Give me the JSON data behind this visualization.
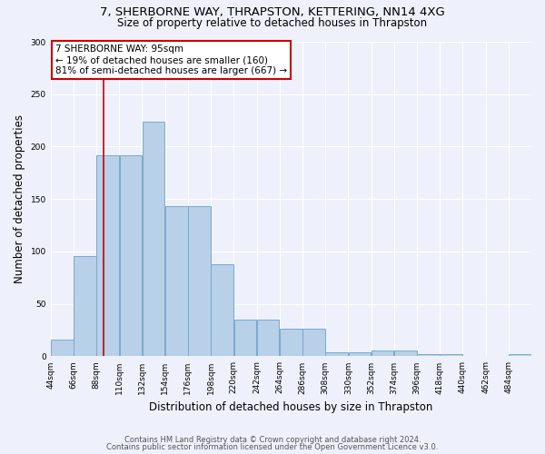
{
  "title1": "7, SHERBORNE WAY, THRAPSTON, KETTERING, NN14 4XG",
  "title2": "Size of property relative to detached houses in Thrapston",
  "xlabel": "Distribution of detached houses by size in Thrapston",
  "ylabel": "Number of detached properties",
  "annotation_line1": "7 SHERBORNE WAY: 95sqm",
  "annotation_line2": "← 19% of detached houses are smaller (160)",
  "annotation_line3": "81% of semi-detached houses are larger (667) →",
  "property_sqm": 95,
  "bin_edges": [
    44,
    66,
    88,
    110,
    132,
    154,
    176,
    198,
    220,
    242,
    264,
    286,
    308,
    330,
    352,
    374,
    396,
    418,
    440,
    462,
    484,
    506
  ],
  "bar_heights": [
    16,
    96,
    192,
    192,
    224,
    143,
    143,
    88,
    35,
    35,
    26,
    26,
    4,
    4,
    6,
    6,
    2,
    2,
    0,
    0,
    2
  ],
  "bar_color": "#b8d0e8",
  "bar_edge_color": "#7aaacb",
  "vline_color": "#cc0000",
  "vline_x": 95,
  "annotation_box_color": "#ffffff",
  "annotation_border_color": "#cc0000",
  "background_color": "#eef1fb",
  "ylim": [
    0,
    300
  ],
  "yticks": [
    0,
    50,
    100,
    150,
    200,
    250,
    300
  ],
  "tick_labels": [
    "44sqm",
    "66sqm",
    "88sqm",
    "110sqm",
    "132sqm",
    "154sqm",
    "176sqm",
    "198sqm",
    "220sqm",
    "242sqm",
    "264sqm",
    "286sqm",
    "308sqm",
    "330sqm",
    "352sqm",
    "374sqm",
    "396sqm",
    "418sqm",
    "440sqm",
    "462sqm",
    "484sqm"
  ],
  "footer1": "Contains HM Land Registry data © Crown copyright and database right 2024.",
  "footer2": "Contains public sector information licensed under the Open Government Licence v3.0.",
  "title1_fontsize": 9.5,
  "title2_fontsize": 8.5,
  "ylabel_fontsize": 8.5,
  "xlabel_fontsize": 8.5,
  "footer_fontsize": 6.0,
  "annotation_fontsize": 7.5,
  "tick_fontsize": 6.5
}
